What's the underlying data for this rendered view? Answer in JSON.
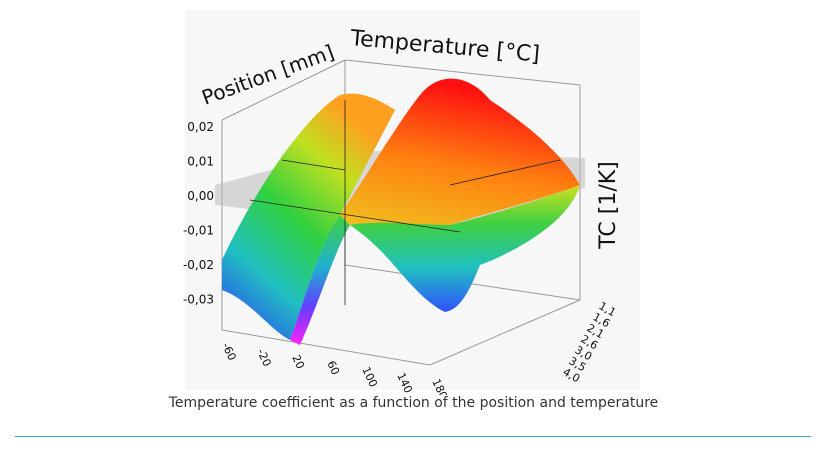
{
  "figure": {
    "axis_labels": {
      "position": "Position [mm]",
      "temperature": "Temperature [°C]",
      "tc": "TC [1/K]"
    },
    "tc_ticks": [
      "0,02",
      "0,01",
      "0,00",
      "-0,01",
      "-0,02",
      "-0,03"
    ],
    "temperature_ticks": [
      "-60",
      "-20",
      "20",
      "60",
      "100",
      "140",
      "180"
    ],
    "position_ticks": [
      "1,1",
      "1,6",
      "2,1",
      "2,6",
      "3,0",
      "3,5",
      "4,0"
    ]
  },
  "caption": "Temperature coefficient as a function of the position and temperature"
}
